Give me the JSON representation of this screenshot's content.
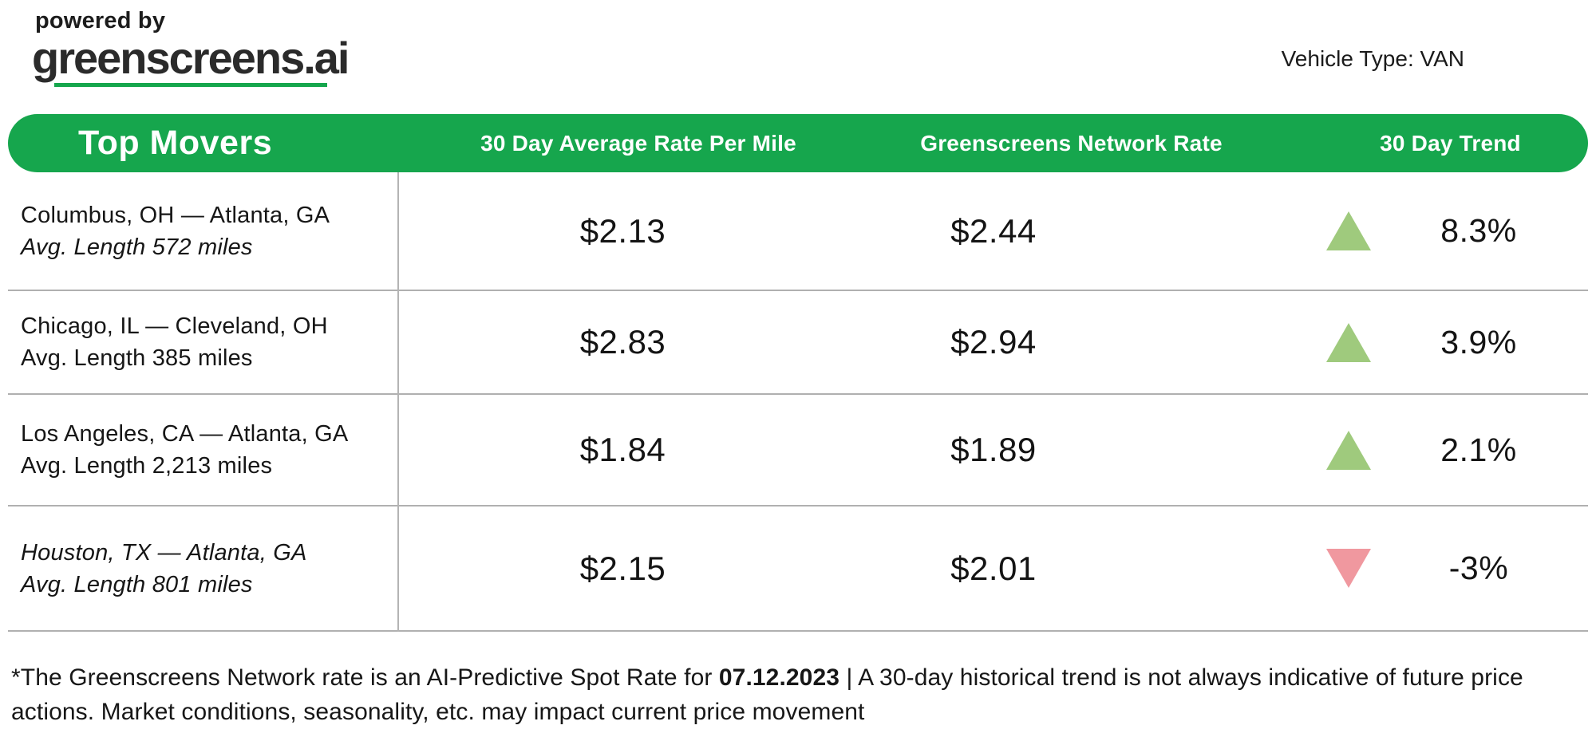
{
  "logo": {
    "powered_by": "powered by",
    "brand": "greenscreens.ai"
  },
  "vehicle_type_label": "Vehicle Type: VAN",
  "table": {
    "title": "Top Movers",
    "columns": [
      "30 Day Average Rate Per Mile",
      "Greenscreens Network Rate",
      "30 Day Trend"
    ],
    "rows": [
      {
        "lane": "Columbus, OH — Atlanta, GA",
        "avg_length": "Avg. Length 572 miles",
        "avg_rate": "$2.13",
        "network_rate": "$2.44",
        "trend": "8.3%",
        "direction": "up"
      },
      {
        "lane": "Chicago, IL — Cleveland, OH",
        "avg_length": "Avg. Length 385 miles",
        "avg_rate": "$2.83",
        "network_rate": "$2.94",
        "trend": "3.9%",
        "direction": "up"
      },
      {
        "lane": "Los Angeles, CA — Atlanta, GA",
        "avg_length": "Avg. Length 2,213 miles",
        "avg_rate": "$1.84",
        "network_rate": "$1.89",
        "trend": "2.1%",
        "direction": "up"
      },
      {
        "lane": "Houston, TX — Atlanta, GA",
        "avg_length": "Avg. Length 801 miles",
        "avg_rate": "$2.15",
        "network_rate": "$2.01",
        "trend": "-3%",
        "direction": "down"
      }
    ]
  },
  "footnote": {
    "part1": "*The Greenscreens Network rate is an AI-Predictive Spot Rate for ",
    "date": "07.12.2023",
    "part2": " | A 30-day historical trend is not always indicative of future price actions. Market conditions, seasonality, etc. may impact current price movement"
  },
  "colors": {
    "brand_green": "#16a64d",
    "up_triangle": "#9fca7d",
    "down_triangle": "#f0989f",
    "divider_gray": "#b0b0b0"
  }
}
